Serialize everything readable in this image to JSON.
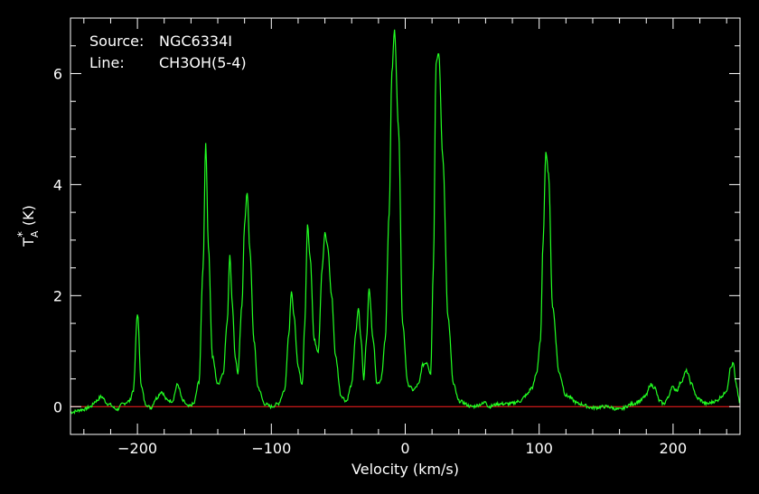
{
  "chart_data": {
    "type": "line",
    "title": "",
    "xlabel": "Velocity (km/s)",
    "ylabel": {
      "base": "T",
      "sub": "A",
      "sup": "*",
      "unit": "(K)"
    },
    "xlim": [
      -250,
      250
    ],
    "ylim": [
      -0.5,
      7.0
    ],
    "x_ticks": [
      -200,
      -100,
      0,
      100,
      200
    ],
    "y_ticks": [
      0,
      2,
      4,
      6
    ],
    "grid": false,
    "annotations": [
      {
        "label": "Source:",
        "value": "NGC6334I"
      },
      {
        "label": "Line:",
        "value": "CH3OH(5-4)"
      }
    ],
    "baseline": {
      "y": 0,
      "color": "#ff2020"
    },
    "series": [
      {
        "color": "#22ff22",
        "x": [
          -250,
          -240,
          -235,
          -231,
          -227,
          -222,
          -215,
          -211,
          -206,
          -203,
          -200,
          -197,
          -194,
          -190,
          -186,
          -182,
          -178,
          -174,
          -170,
          -166,
          -162,
          -158,
          -154,
          -151,
          -149,
          -147,
          -144,
          -140,
          -136,
          -133,
          -131,
          -129,
          -127,
          -125,
          -122,
          -120,
          -118,
          -116,
          -113,
          -110,
          -105,
          -100,
          -95,
          -90,
          -87,
          -85,
          -83,
          -80,
          -77,
          -75,
          -73,
          -71,
          -68,
          -65,
          -62,
          -60,
          -58,
          -55,
          -52,
          -48,
          -44,
          -40,
          -37,
          -35,
          -33,
          -31,
          -29,
          -27,
          -24,
          -21,
          -18,
          -15,
          -12,
          -10,
          -8,
          -5,
          -2,
          2,
          6,
          10,
          13,
          16,
          19,
          21,
          23,
          25,
          28,
          32,
          36,
          40,
          50,
          58,
          60,
          62,
          70,
          78,
          86,
          90,
          95,
          98,
          101,
          103,
          105,
          107,
          110,
          115,
          120,
          130,
          140,
          150,
          160,
          170,
          175,
          180,
          183,
          186,
          190,
          193,
          196,
          199,
          203,
          206,
          210,
          214,
          218,
          225,
          232,
          237,
          240,
          243,
          245,
          247,
          250
        ],
        "y": [
          -0.1,
          -0.05,
          0.0,
          0.1,
          0.18,
          0.05,
          -0.05,
          0.05,
          0.1,
          0.3,
          1.68,
          0.35,
          0.05,
          -0.02,
          0.15,
          0.27,
          0.12,
          0.1,
          0.4,
          0.1,
          0.0,
          0.05,
          0.45,
          2.5,
          4.76,
          2.9,
          0.9,
          0.4,
          0.6,
          1.5,
          2.74,
          1.8,
          0.9,
          0.6,
          1.8,
          3.3,
          3.86,
          2.8,
          1.2,
          0.35,
          0.05,
          0.0,
          0.05,
          0.3,
          1.3,
          2.1,
          1.6,
          0.7,
          0.4,
          1.5,
          3.27,
          2.7,
          1.2,
          1.0,
          2.5,
          3.12,
          2.9,
          2.0,
          0.9,
          0.2,
          0.1,
          0.4,
          1.3,
          1.78,
          1.2,
          0.5,
          1.2,
          2.12,
          1.2,
          0.4,
          0.5,
          1.2,
          3.5,
          6.0,
          6.78,
          5.0,
          1.5,
          0.4,
          0.3,
          0.4,
          0.75,
          0.8,
          0.6,
          2.5,
          6.2,
          6.38,
          4.5,
          1.6,
          0.4,
          0.1,
          0.0,
          0.05,
          0.1,
          0.0,
          0.05,
          0.05,
          0.1,
          0.2,
          0.35,
          0.6,
          1.2,
          3.0,
          4.61,
          4.2,
          1.8,
          0.6,
          0.2,
          0.05,
          -0.02,
          0.0,
          -0.05,
          0.05,
          0.1,
          0.2,
          0.4,
          0.35,
          0.1,
          0.05,
          0.15,
          0.35,
          0.3,
          0.45,
          0.64,
          0.4,
          0.15,
          0.05,
          0.1,
          0.2,
          0.3,
          0.7,
          0.78,
          0.4,
          0.05
        ]
      }
    ]
  }
}
